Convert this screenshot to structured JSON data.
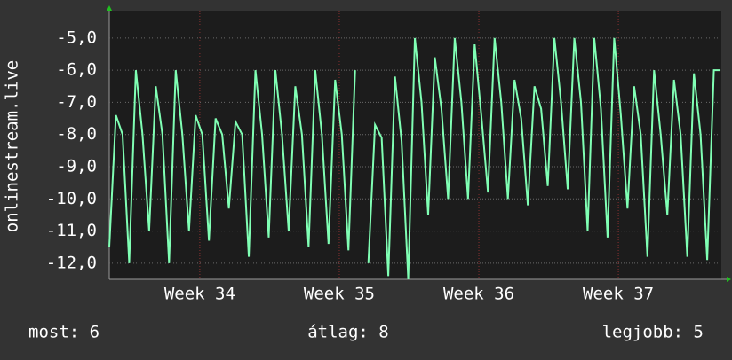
{
  "chart_data": {
    "type": "line",
    "y_label": "onlinestream.live",
    "x": [
      0,
      8,
      16,
      24,
      32,
      40,
      48,
      56,
      64,
      72,
      80,
      88,
      96,
      104,
      112,
      120,
      128,
      136,
      144,
      152,
      160,
      168,
      176,
      184,
      192,
      200,
      208,
      216,
      224,
      232,
      240,
      248,
      256,
      264,
      272,
      280,
      288,
      296,
      304,
      312,
      320,
      328,
      336,
      344,
      352,
      360,
      368,
      376,
      384,
      392,
      400,
      408,
      416,
      424,
      432,
      440,
      448,
      456,
      464,
      472,
      480,
      488,
      496,
      504,
      512,
      520,
      528,
      536,
      544,
      552,
      560,
      568,
      576,
      584,
      592,
      600,
      608,
      616,
      624,
      632,
      640,
      648,
      656,
      664,
      672,
      680,
      688,
      696,
      704,
      712,
      720,
      728,
      736
    ],
    "series": [
      {
        "name": "onlinestream.live",
        "color": "#80ffb4",
        "values": [
          -11.5,
          -7.4,
          -8,
          -12,
          -6,
          -8,
          -11,
          -6.5,
          -8,
          -12,
          -6,
          -8,
          -11,
          -7.4,
          -8,
          -11.3,
          -7.5,
          -8,
          -10.3,
          -7.6,
          -8,
          -11.8,
          -6,
          -8,
          -11.2,
          -6,
          -8,
          -11,
          -6.5,
          -8,
          -11.5,
          -6,
          -8,
          -11.4,
          -6.3,
          -8,
          -11.6,
          -6,
          null,
          -12,
          -7.7,
          -8.1,
          -12.4,
          -6.2,
          -8.2,
          -12.5,
          -5,
          -7,
          -10.5,
          -5.6,
          -7.2,
          -10,
          -5,
          -7,
          -10,
          -5.2,
          -7.4,
          -9.8,
          -5,
          -7,
          -10,
          -6.3,
          -7.5,
          -10.2,
          -6.5,
          -7.2,
          -9.6,
          -5,
          -7,
          -9.7,
          -5,
          -7,
          -11,
          -5,
          -7.2,
          -11.2,
          -5,
          -7.4,
          -10.3,
          -6.5,
          -8,
          -11.8,
          -6,
          -8,
          -10.5,
          -6.3,
          -8,
          -11.8,
          -6.1,
          -8,
          -11.9,
          -6,
          -6
        ]
      }
    ],
    "xlim": [
      0,
      737
    ],
    "xticks": [
      {
        "value": 109,
        "label": "Week 34"
      },
      {
        "value": 277,
        "label": "Week 35"
      },
      {
        "value": 445,
        "label": "Week 36"
      },
      {
        "value": 613,
        "label": "Week 37"
      }
    ],
    "ylim": [
      -12.5,
      -4.15
    ],
    "yticks": [
      {
        "value": -12,
        "label": "-12,0"
      },
      {
        "value": -11,
        "label": "-11,0"
      },
      {
        "value": -10,
        "label": "-10,0"
      },
      {
        "value": -9,
        "label": "-9,0"
      },
      {
        "value": -8,
        "label": "-8,0"
      },
      {
        "value": -7,
        "label": "-7,0"
      },
      {
        "value": -6,
        "label": "-6,0"
      },
      {
        "value": -5,
        "label": "-5,0"
      }
    ],
    "grid": true,
    "stats": [
      "most: 6",
      "átlag: 8",
      "legjobb: 5"
    ]
  }
}
